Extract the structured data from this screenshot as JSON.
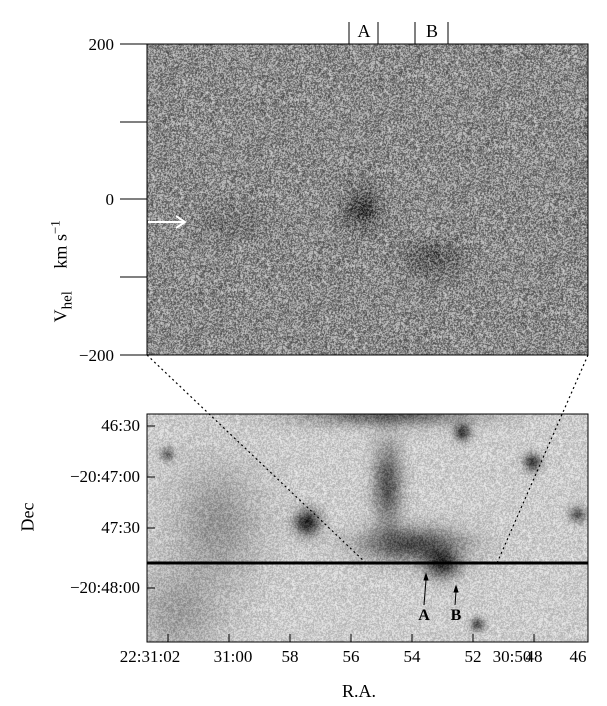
{
  "spectrum_panel": {
    "y_axis_label": "V",
    "y_axis_label_sub": "hel",
    "y_axis_units": "km s",
    "y_axis_units_sup": "−1",
    "y_ticks": [
      "200",
      "0",
      "−200"
    ],
    "markers": [
      "A",
      "B"
    ]
  },
  "image_panel": {
    "y_axis_label": "Dec",
    "y_ticks": [
      "46:30",
      "−20:47:00",
      "47:30",
      "−20:48:00"
    ],
    "x_axis_label": "R.A.",
    "x_ticks": [
      "22:31:02",
      "31:00",
      "58",
      "56",
      "54",
      "52",
      "30:50",
      "48",
      "46"
    ],
    "markers": [
      "A",
      "B"
    ]
  },
  "colors": {
    "background": "#ffffff",
    "ink": "#000000"
  }
}
